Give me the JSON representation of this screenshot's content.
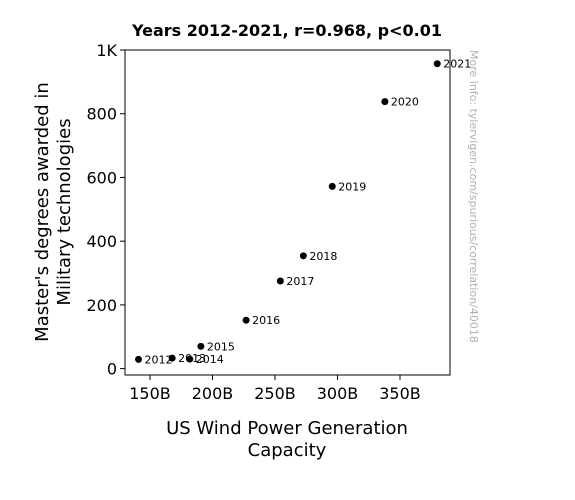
{
  "chart_data": {
    "type": "scatter",
    "title": "Years 2012-2021, r=0.968, p<0.01",
    "xlabel": [
      "US Wind Power Generation",
      "Capacity"
    ],
    "ylabel": [
      "Master's degrees awarded in",
      "Military technologies"
    ],
    "xlim": [
      130,
      390
    ],
    "ylim": [
      -20,
      1000
    ],
    "xticks": [
      {
        "value": 150,
        "label": "150B"
      },
      {
        "value": 200,
        "label": "200B"
      },
      {
        "value": 250,
        "label": "250B"
      },
      {
        "value": 300,
        "label": "300B"
      },
      {
        "value": 350,
        "label": "350B"
      }
    ],
    "yticks": [
      {
        "value": 0,
        "label": "0"
      },
      {
        "value": 200,
        "label": "200"
      },
      {
        "value": 400,
        "label": "400"
      },
      {
        "value": 600,
        "label": "600"
      },
      {
        "value": 800,
        "label": "800"
      },
      {
        "value": 1000,
        "label": "1K"
      }
    ],
    "points": [
      {
        "label": "2012",
        "x": 140.8,
        "y": 29
      },
      {
        "label": "2013",
        "x": 167.7,
        "y": 33
      },
      {
        "label": "2014",
        "x": 181.8,
        "y": 30
      },
      {
        "label": "2015",
        "x": 190.7,
        "y": 70
      },
      {
        "label": "2016",
        "x": 226.9,
        "y": 152
      },
      {
        "label": "2017",
        "x": 254.3,
        "y": 275
      },
      {
        "label": "2018",
        "x": 272.7,
        "y": 354
      },
      {
        "label": "2019",
        "x": 295.8,
        "y": 572
      },
      {
        "label": "2020",
        "x": 337.9,
        "y": 838
      },
      {
        "label": "2021",
        "x": 379.8,
        "y": 957
      }
    ],
    "grid": false,
    "watermark": "More info: tylervigen.com/spurious/correlation/40018"
  }
}
